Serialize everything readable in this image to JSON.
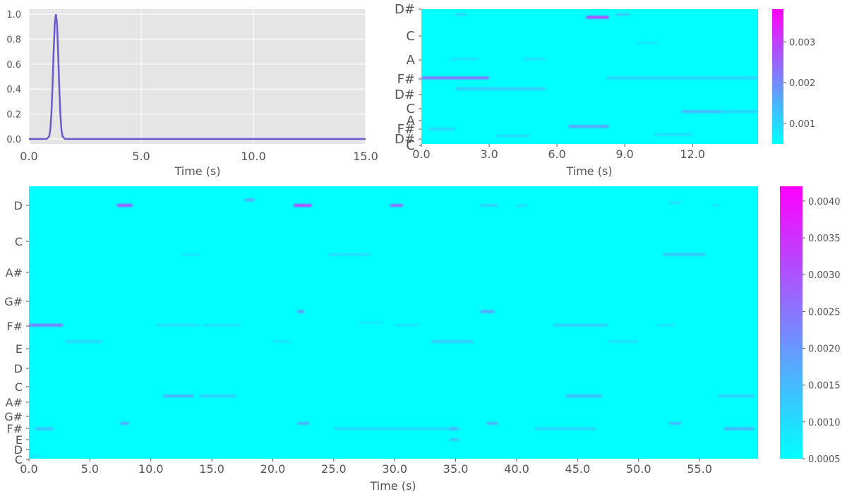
{
  "chart_data": [
    {
      "id": "window",
      "type": "line",
      "xlabel": "Time (s)",
      "xlim": [
        0,
        15
      ],
      "ylim": [
        -0.04,
        1.04
      ],
      "xticks": [
        "0.0",
        "5.0",
        "10.0",
        "15.0"
      ],
      "yticks": [
        "0.0",
        "0.2",
        "0.4",
        "0.6",
        "0.8",
        "1.0"
      ],
      "grid": true,
      "line_color": "#6a5acd",
      "background": "#e5e5e5",
      "series": [
        {
          "x": [
            0,
            0.5,
            0.8,
            0.9,
            0.95,
            1.0,
            1.05,
            1.1,
            1.15,
            1.2,
            1.25,
            1.3,
            1.35,
            1.4,
            1.45,
            1.5,
            1.6,
            1.8,
            3,
            5,
            10,
            15
          ],
          "y": [
            0,
            0,
            0.001,
            0.02,
            0.07,
            0.2,
            0.42,
            0.7,
            0.92,
            1.0,
            0.92,
            0.7,
            0.42,
            0.2,
            0.07,
            0.02,
            0.001,
            0,
            0,
            0,
            0,
            0
          ]
        }
      ]
    },
    {
      "id": "chroma-short",
      "type": "heatmap",
      "xlabel": "Time (s)",
      "xlim": [
        0,
        14.9
      ],
      "xticks": [
        "0.0",
        "3.0",
        "6.0",
        "9.0",
        "12.0"
      ],
      "yticks": [
        "C",
        "D#",
        "F#",
        "A",
        "C",
        "D#",
        "F#",
        "A",
        "C",
        "D#"
      ],
      "colormap": "cool",
      "colorbar_ticks": [
        "0.001",
        "0.002",
        "0.003"
      ],
      "colorbar_range": [
        0.0005,
        0.0038
      ],
      "features": [
        {
          "t0": 0.0,
          "t1": 3.0,
          "r": 0.51,
          "v": 0.0028
        },
        {
          "t0": 7.3,
          "t1": 8.3,
          "r": 0.06,
          "v": 0.0036
        },
        {
          "t0": 8.6,
          "t1": 9.2,
          "r": 0.04,
          "v": 0.0014
        },
        {
          "t0": 1.5,
          "t1": 2.0,
          "r": 0.04,
          "v": 0.0012
        },
        {
          "t0": 8.2,
          "t1": 14.9,
          "r": 0.51,
          "v": 0.0013
        },
        {
          "t0": 1.5,
          "t1": 5.5,
          "r": 0.59,
          "v": 0.0014
        },
        {
          "t0": 11.5,
          "t1": 13.3,
          "r": 0.76,
          "v": 0.0017
        },
        {
          "t0": 13.3,
          "t1": 14.9,
          "r": 0.76,
          "v": 0.0012
        },
        {
          "t0": 6.5,
          "t1": 8.3,
          "r": 0.87,
          "v": 0.0021
        },
        {
          "t0": 0.3,
          "t1": 1.5,
          "r": 0.89,
          "v": 0.0012
        },
        {
          "t0": 3.3,
          "t1": 4.8,
          "r": 0.94,
          "v": 0.0011
        },
        {
          "t0": 10.3,
          "t1": 12.0,
          "r": 0.93,
          "v": 0.0011
        },
        {
          "t0": 1.3,
          "t1": 2.5,
          "r": 0.37,
          "v": 0.001
        },
        {
          "t0": 4.5,
          "t1": 5.5,
          "r": 0.37,
          "v": 0.001
        },
        {
          "t0": 9.5,
          "t1": 10.5,
          "r": 0.25,
          "v": 0.0009
        }
      ]
    },
    {
      "id": "chroma-long",
      "type": "heatmap",
      "xlabel": "Time (s)",
      "xlim": [
        0,
        59.8
      ],
      "xticks": [
        "0.0",
        "5.0",
        "10.0",
        "15.0",
        "20.0",
        "25.0",
        "30.0",
        "35.0",
        "40.0",
        "45.0",
        "50.0",
        "55.0"
      ],
      "yticks": [
        "C",
        "D",
        "E",
        "F#",
        "G#",
        "A#",
        "C",
        "D",
        "E",
        "F#",
        "G#",
        "A#",
        "C",
        "D"
      ],
      "colormap": "cool",
      "colorbar_ticks": [
        "0.0005",
        "0.0010",
        "0.0015",
        "0.0020",
        "0.0025",
        "0.0030",
        "0.0035",
        "0.0040"
      ],
      "colorbar_range": [
        0.0005,
        0.0042
      ],
      "features": [
        {
          "t0": 7.2,
          "t1": 8.5,
          "r": 0.07,
          "v": 0.0037
        },
        {
          "t0": 21.7,
          "t1": 23.2,
          "r": 0.07,
          "v": 0.0041
        },
        {
          "t0": 29.6,
          "t1": 30.7,
          "r": 0.07,
          "v": 0.0033
        },
        {
          "t0": 17.7,
          "t1": 18.5,
          "r": 0.05,
          "v": 0.0022
        },
        {
          "t0": 37.0,
          "t1": 38.5,
          "r": 0.07,
          "v": 0.0014
        },
        {
          "t0": 40.0,
          "t1": 40.8,
          "r": 0.07,
          "v": 0.0012
        },
        {
          "t0": 52.5,
          "t1": 53.5,
          "r": 0.06,
          "v": 0.0011
        },
        {
          "t0": 56.0,
          "t1": 56.6,
          "r": 0.07,
          "v": 0.001
        },
        {
          "t0": 0.0,
          "t1": 2.8,
          "r": 0.51,
          "v": 0.003
        },
        {
          "t0": 10.5,
          "t1": 14.0,
          "r": 0.51,
          "v": 0.0012
        },
        {
          "t0": 14.3,
          "t1": 17.3,
          "r": 0.51,
          "v": 0.0011
        },
        {
          "t0": 30.0,
          "t1": 32.0,
          "r": 0.51,
          "v": 0.001
        },
        {
          "t0": 43.0,
          "t1": 47.5,
          "r": 0.51,
          "v": 0.0015
        },
        {
          "t0": 51.5,
          "t1": 53.0,
          "r": 0.51,
          "v": 0.001
        },
        {
          "t0": 22.0,
          "t1": 22.6,
          "r": 0.46,
          "v": 0.0024
        },
        {
          "t0": 37.0,
          "t1": 38.2,
          "r": 0.46,
          "v": 0.0022
        },
        {
          "t0": 11.0,
          "t1": 13.5,
          "r": 0.77,
          "v": 0.002
        },
        {
          "t0": 14.0,
          "t1": 17.0,
          "r": 0.77,
          "v": 0.0014
        },
        {
          "t0": 44.0,
          "t1": 47.0,
          "r": 0.77,
          "v": 0.0018
        },
        {
          "t0": 56.5,
          "t1": 59.5,
          "r": 0.77,
          "v": 0.0014
        },
        {
          "t0": 3.0,
          "t1": 6.0,
          "r": 0.57,
          "v": 0.0013
        },
        {
          "t0": 33.0,
          "t1": 36.5,
          "r": 0.57,
          "v": 0.0015
        },
        {
          "t0": 20.0,
          "t1": 21.5,
          "r": 0.57,
          "v": 0.001
        },
        {
          "t0": 47.5,
          "t1": 50.0,
          "r": 0.57,
          "v": 0.0011
        },
        {
          "t0": 7.5,
          "t1": 8.2,
          "r": 0.87,
          "v": 0.0022
        },
        {
          "t0": 22.0,
          "t1": 23.0,
          "r": 0.87,
          "v": 0.002
        },
        {
          "t0": 37.5,
          "t1": 38.5,
          "r": 0.87,
          "v": 0.0019
        },
        {
          "t0": 52.5,
          "t1": 53.5,
          "r": 0.87,
          "v": 0.0018
        },
        {
          "t0": 0.5,
          "t1": 2.0,
          "r": 0.89,
          "v": 0.0017
        },
        {
          "t0": 25.0,
          "t1": 35.0,
          "r": 0.89,
          "v": 0.0012
        },
        {
          "t0": 41.5,
          "t1": 46.5,
          "r": 0.89,
          "v": 0.0013
        },
        {
          "t0": 57.0,
          "t1": 59.5,
          "r": 0.89,
          "v": 0.0019
        },
        {
          "t0": 24.5,
          "t1": 28.0,
          "r": 0.25,
          "v": 0.0012
        },
        {
          "t0": 52.0,
          "t1": 55.5,
          "r": 0.25,
          "v": 0.0016
        },
        {
          "t0": 27.0,
          "t1": 29.0,
          "r": 0.5,
          "v": 0.0009
        },
        {
          "t0": 34.5,
          "t1": 35.3,
          "r": 0.89,
          "v": 0.0018
        },
        {
          "t0": 34.5,
          "t1": 35.3,
          "r": 0.93,
          "v": 0.0016
        },
        {
          "t0": 12.5,
          "t1": 14.0,
          "r": 0.25,
          "v": 0.001
        },
        {
          "t0": 0.0,
          "t1": 1.0,
          "r": 0.99,
          "v": 0.0009
        }
      ]
    }
  ]
}
